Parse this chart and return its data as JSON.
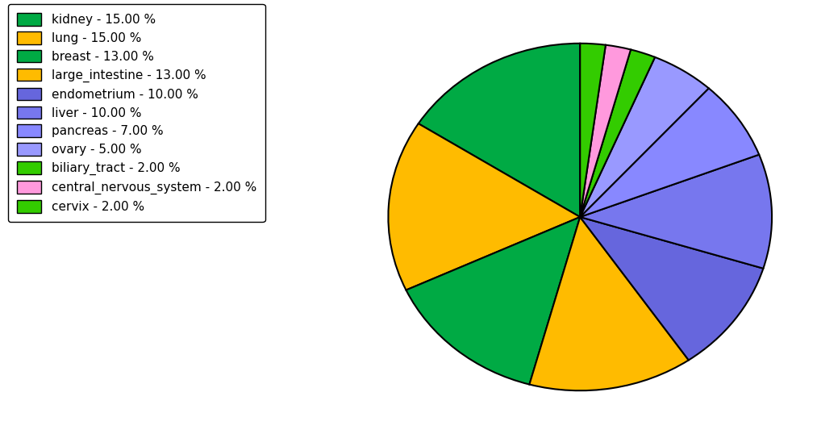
{
  "labels": [
    "kidney",
    "lung",
    "breast",
    "large_intestine",
    "endometrium",
    "liver",
    "pancreas",
    "ovary",
    "biliary_tract",
    "central_nervous_system",
    "cervix"
  ],
  "values": [
    15.0,
    15.0,
    13.0,
    13.0,
    10.0,
    10.0,
    7.0,
    5.0,
    2.0,
    2.0,
    2.0
  ],
  "colors": [
    "#00aa44",
    "#ffbb00",
    "#00aa44",
    "#ffbb00",
    "#6666dd",
    "#7777ee",
    "#8888ff",
    "#9999ff",
    "#33cc00",
    "#ff99dd",
    "#33cc00"
  ],
  "legend_labels": [
    "kidney - 15.00 %",
    "lung - 15.00 %",
    "breast - 13.00 %",
    "large_intestine - 13.00 %",
    "endometrium - 10.00 %",
    "liver - 10.00 %",
    "pancreas - 7.00 %",
    "ovary - 5.00 %",
    "biliary_tract - 2.00 %",
    "central_nervous_system - 2.00 %",
    "cervix - 2.00 %"
  ],
  "legend_colors": [
    "#00aa44",
    "#ffbb00",
    "#00aa44",
    "#ffbb00",
    "#6666dd",
    "#7777ee",
    "#8888ff",
    "#9999ff",
    "#33cc00",
    "#ff99dd",
    "#33cc00"
  ],
  "figsize": [
    10.13,
    5.38
  ],
  "dpi": 100,
  "startangle": 90
}
